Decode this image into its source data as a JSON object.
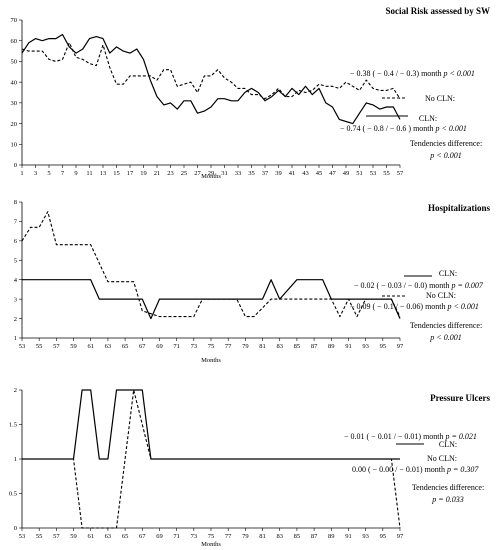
{
  "chart_data": [
    {
      "type": "line",
      "title": "Social Risk assessed by SW",
      "xlabel": "Months",
      "ylabel": "",
      "ylim": [
        0,
        70
      ],
      "yticks": [
        0,
        10,
        20,
        30,
        40,
        50,
        60,
        70
      ],
      "xlim": [
        1,
        57
      ],
      "xticks": [
        1,
        3,
        5,
        7,
        9,
        11,
        13,
        15,
        17,
        19,
        21,
        23,
        25,
        27,
        29,
        31,
        33,
        35,
        37,
        39,
        41,
        43,
        45,
        47,
        49,
        51,
        53,
        55,
        57
      ],
      "series": [
        {
          "name": "No CLN:",
          "style": "dashed",
          "x": [
            1,
            2,
            3,
            4,
            5,
            6,
            7,
            8,
            9,
            10,
            11,
            12,
            13,
            14,
            15,
            16,
            17,
            18,
            19,
            20,
            21,
            22,
            23,
            24,
            25,
            26,
            27,
            28,
            29,
            30,
            31,
            32,
            33,
            34,
            35,
            36,
            37,
            38,
            39,
            40,
            41,
            42,
            43,
            44,
            45,
            46,
            47,
            48,
            49,
            50,
            51,
            52,
            53,
            54,
            55,
            56,
            57
          ],
          "values": [
            56,
            55,
            55,
            55,
            51,
            50,
            51,
            59,
            52,
            51,
            49,
            48,
            58,
            47,
            39,
            39,
            43,
            43,
            43,
            43,
            41,
            46,
            46,
            38,
            39,
            40,
            35,
            43,
            43,
            46,
            42,
            40,
            37,
            37,
            34,
            34,
            32,
            34,
            37,
            33,
            33,
            36,
            35,
            36,
            39,
            38,
            38,
            37,
            40,
            38,
            36,
            41,
            37,
            36,
            36,
            37,
            32
          ]
        },
        {
          "name": "CLN:",
          "style": "solid",
          "x": [
            1,
            2,
            3,
            4,
            5,
            6,
            7,
            8,
            9,
            10,
            11,
            12,
            13,
            14,
            15,
            16,
            17,
            18,
            19,
            20,
            21,
            22,
            23,
            24,
            25,
            26,
            27,
            28,
            29,
            30,
            31,
            32,
            33,
            34,
            35,
            36,
            37,
            38,
            39,
            40,
            41,
            42,
            43,
            44,
            45,
            46,
            47,
            48,
            49,
            50,
            51,
            52,
            53,
            54,
            55,
            56,
            57
          ],
          "values": [
            54,
            59,
            61,
            60,
            61,
            61,
            63,
            57,
            54,
            56,
            61,
            62,
            61,
            54,
            57,
            55,
            54,
            56,
            51,
            41,
            33,
            29,
            30,
            27,
            31,
            31,
            25,
            26,
            28,
            32,
            32,
            31,
            31,
            35,
            37,
            35,
            31,
            33,
            36,
            33,
            37,
            34,
            38,
            34,
            37,
            30,
            28,
            22,
            21,
            20,
            25,
            30,
            29,
            27,
            28,
            28,
            22
          ]
        }
      ],
      "annotations": {
        "no_cln_slope": "− 0.38 ( − 0.4 / − 0.3) month",
        "no_cln_p": "p < 0.001",
        "cln_slope": "− 0.74 ( − 0.8 / − 0.6 ) month",
        "cln_p": "p < 0.001",
        "tendencies_label": "Tendencies difference:",
        "tendencies_p": "p < 0.001"
      }
    },
    {
      "type": "line",
      "title": "Hospitalizations",
      "xlabel": "Months",
      "ylabel": "",
      "ylim": [
        1,
        8
      ],
      "yticks": [
        1,
        2,
        3,
        4,
        5,
        6,
        7,
        8
      ],
      "xlim": [
        53,
        97
      ],
      "xticks": [
        53,
        55,
        57,
        59,
        61,
        63,
        65,
        67,
        69,
        71,
        73,
        75,
        77,
        79,
        81,
        83,
        85,
        87,
        89,
        91,
        93,
        95,
        97
      ],
      "series": [
        {
          "name": "CLN:",
          "style": "solid",
          "x": [
            53,
            61,
            62,
            67,
            68,
            69,
            81,
            82,
            83,
            85,
            88,
            89,
            96,
            97
          ],
          "values": [
            4,
            4,
            3,
            3,
            2,
            3,
            3,
            4,
            3,
            4,
            4,
            3,
            3,
            2
          ]
        },
        {
          "name": "No CLN:",
          "style": "dashed",
          "x": [
            53,
            54,
            55,
            56,
            57,
            61,
            63,
            66,
            67,
            69,
            73,
            74,
            78,
            79,
            80,
            82,
            83,
            89,
            90,
            91,
            92,
            93,
            96,
            97
          ],
          "values": [
            6,
            6.7,
            6.7,
            7.5,
            5.8,
            5.8,
            3.9,
            3.9,
            2.4,
            2.1,
            2.1,
            3.0,
            3.0,
            2.1,
            2.1,
            3.0,
            3.0,
            3.0,
            2.1,
            3.0,
            2.1,
            3.0,
            3.0,
            2.1
          ]
        }
      ],
      "annotations": {
        "cln_slope": "− 0.02 ( − 0.03 / − 0.0) month",
        "cln_p": "p = 0.007",
        "no_cln_slope": "− 0.09 ( − 0.1 / − 0.06) month",
        "no_cln_p": "p < 0.001",
        "tendencies_label": "Tendencies difference:",
        "tendencies_p": "p < 0.001"
      }
    },
    {
      "type": "line",
      "title": "Pressure Ulcers",
      "xlabel": "Months",
      "ylabel": "",
      "ylim": [
        0,
        2
      ],
      "yticks": [
        0,
        0.5,
        1,
        1.5,
        2
      ],
      "ytick_labels": [
        "0",
        "0.5",
        "1",
        "1.5",
        "2"
      ],
      "xlim": [
        53,
        97
      ],
      "xticks": [
        53,
        55,
        57,
        59,
        61,
        63,
        65,
        67,
        69,
        71,
        73,
        75,
        77,
        79,
        81,
        83,
        85,
        87,
        89,
        91,
        93,
        95,
        97
      ],
      "series": [
        {
          "name": "CLN:",
          "style": "solid",
          "x": [
            53,
            59,
            60,
            61,
            62,
            63,
            64,
            65,
            66,
            67,
            68,
            97
          ],
          "values": [
            1,
            1,
            2,
            2,
            1,
            1,
            2,
            2,
            2,
            2,
            1,
            1
          ]
        },
        {
          "name": "No CLN:",
          "style": "dashed",
          "x": [
            53,
            59,
            60,
            63,
            64,
            66,
            68,
            96,
            97
          ],
          "values": [
            1,
            1,
            0,
            0,
            0,
            2,
            1,
            1,
            0
          ]
        }
      ],
      "annotations": {
        "cln_slope": "− 0.01 ( − 0.01 / − 0.01) month",
        "cln_p": "p = 0.021",
        "no_cln_slope": "0.00 ( − 0.00 / − 0.01) month",
        "no_cln_p": "p = 0.307",
        "tendencies_label": "Tendencies difference:",
        "tendencies_p": "p = 0.033"
      }
    }
  ]
}
